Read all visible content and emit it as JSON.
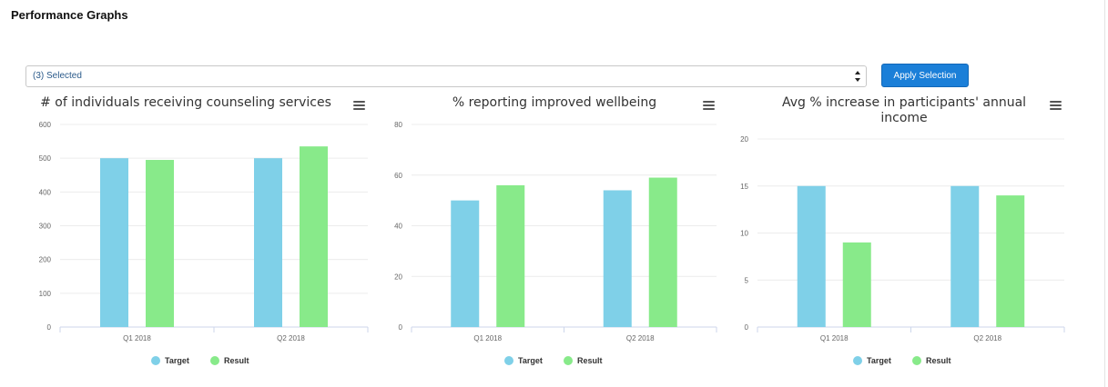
{
  "page": {
    "title": "Performance Graphs"
  },
  "filter": {
    "selected_label": "(3) Selected",
    "apply_label": "Apply Selection"
  },
  "colors": {
    "target": "#7fd0e8",
    "result": "#88ea8a",
    "accent": "#1b7fd8"
  },
  "chart_data": [
    {
      "type": "bar",
      "title": [
        "# of individuals receiving counseling services"
      ],
      "categories": [
        "Q1 2018",
        "Q2 2018"
      ],
      "series": [
        {
          "name": "Target",
          "values": [
            500,
            500
          ]
        },
        {
          "name": "Result",
          "values": [
            495,
            535
          ]
        }
      ],
      "ylim": [
        0,
        600
      ],
      "yticks": [
        "0",
        "100",
        "200",
        "300",
        "400",
        "500",
        "600"
      ],
      "grid": true,
      "legend": "bottom-center"
    },
    {
      "type": "bar",
      "title": [
        "% reporting improved wellbeing"
      ],
      "categories": [
        "Q1 2018",
        "Q2 2018"
      ],
      "series": [
        {
          "name": "Target",
          "values": [
            50,
            54
          ]
        },
        {
          "name": "Result",
          "values": [
            56,
            59
          ]
        }
      ],
      "ylim": [
        0,
        80
      ],
      "yticks": [
        "0",
        "20",
        "40",
        "60",
        "80"
      ],
      "grid": true,
      "legend": "bottom-center"
    },
    {
      "type": "bar",
      "title": [
        "Avg % increase in participants' annual",
        "income"
      ],
      "categories": [
        "Q1 2018",
        "Q2 2018"
      ],
      "series": [
        {
          "name": "Target",
          "values": [
            15,
            15
          ]
        },
        {
          "name": "Result",
          "values": [
            9,
            14
          ]
        }
      ],
      "ylim": [
        0,
        20
      ],
      "yticks": [
        "0",
        "5",
        "10",
        "15",
        "20"
      ],
      "grid": true,
      "legend": "bottom-center"
    }
  ]
}
